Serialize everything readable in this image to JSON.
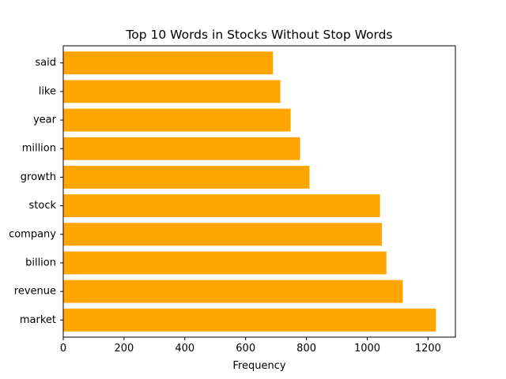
{
  "chart_data": {
    "type": "bar",
    "orientation": "horizontal",
    "title": "Top 10 Words in Stocks Without Stop Words",
    "xlabel": "Frequency",
    "ylabel": "",
    "categories": [
      "market",
      "revenue",
      "billion",
      "company",
      "stock",
      "growth",
      "million",
      "year",
      "like",
      "said"
    ],
    "values": [
      1226,
      1117,
      1063,
      1048,
      1042,
      810,
      779,
      748,
      714,
      690
    ],
    "xlim": [
      0,
      1290
    ],
    "xticks": [
      0,
      200,
      400,
      600,
      800,
      1000,
      1200
    ],
    "bar_color": "#ffa500",
    "grid": false,
    "legend": "none"
  }
}
